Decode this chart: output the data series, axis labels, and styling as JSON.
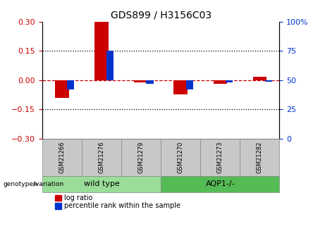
{
  "title": "GDS899 / H3156C03",
  "samples": [
    "GSM21266",
    "GSM21276",
    "GSM21279",
    "GSM21270",
    "GSM21273",
    "GSM21282"
  ],
  "log_ratio": [
    -0.09,
    0.3,
    -0.012,
    -0.072,
    -0.018,
    0.018
  ],
  "percentile_rank": [
    42,
    75,
    47,
    42,
    48,
    49
  ],
  "ylim_left": [
    -0.3,
    0.3
  ],
  "ylim_right": [
    0,
    100
  ],
  "yticks_left": [
    -0.3,
    -0.15,
    0,
    0.15,
    0.3
  ],
  "yticks_right": [
    0,
    25,
    50,
    75,
    100
  ],
  "ytick_labels_right": [
    "0",
    "25",
    "50",
    "75",
    "100%"
  ],
  "hlines_dotted": [
    -0.15,
    0.15
  ],
  "hline_dashed": 0,
  "red_color": "#CC0000",
  "blue_color": "#0033CC",
  "groups": [
    {
      "label": "wild type",
      "indices": [
        0,
        1,
        2
      ],
      "color": "#99DD99"
    },
    {
      "label": "AQP1-/-",
      "indices": [
        3,
        4,
        5
      ],
      "color": "#55BB55"
    }
  ],
  "group_label": "genotype/variation",
  "legend_items": [
    "log ratio",
    "percentile rank within the sample"
  ],
  "bg_color": "#FFFFFF",
  "plot_bg_color": "#FFFFFF",
  "tick_color_left": "#CC0000",
  "tick_color_right": "#0033CC",
  "sample_box_color": "#C8C8C8",
  "figsize": [
    4.61,
    3.45
  ],
  "dpi": 100
}
